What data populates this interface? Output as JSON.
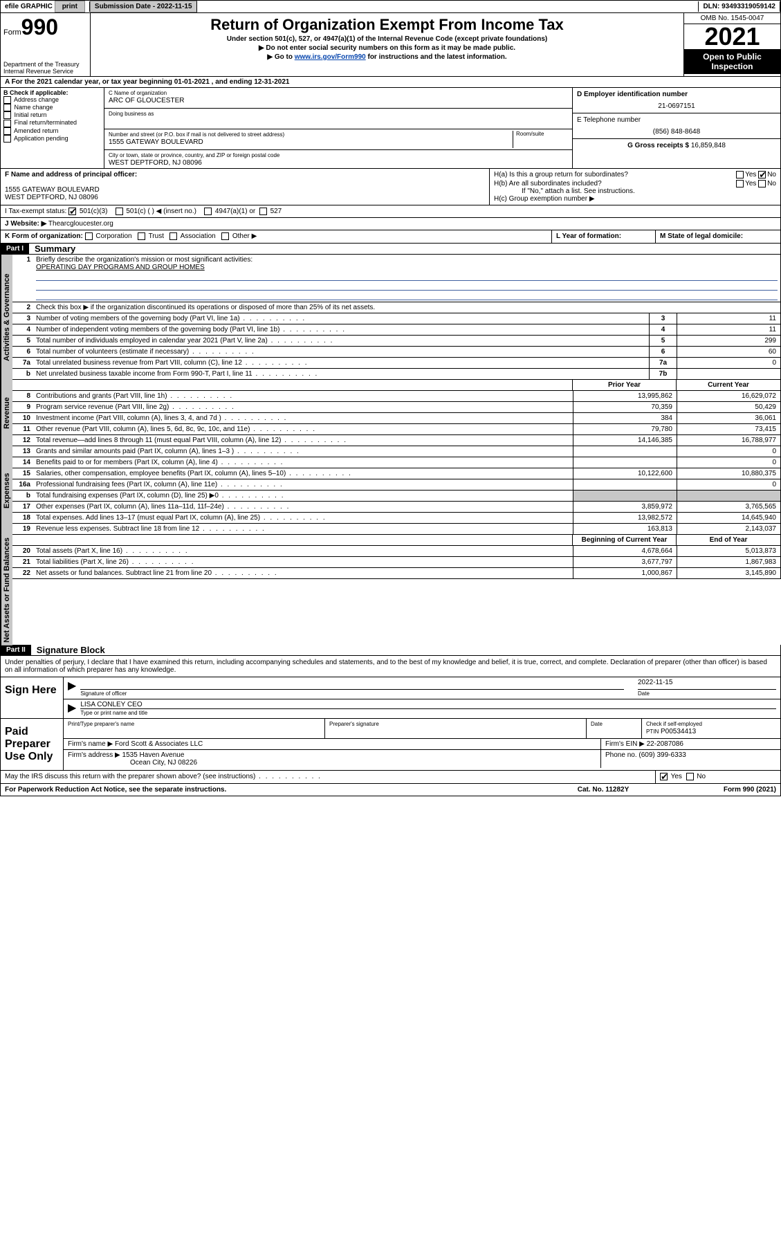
{
  "topbar": {
    "efile": "efile GRAPHIC",
    "print": "print",
    "subdate_label": "Submission Date - ",
    "subdate": "2022-11-15",
    "dln_label": "DLN: ",
    "dln": "93493319059142"
  },
  "header": {
    "form_label": "Form",
    "form_num": "990",
    "dept": "Department of the Treasury",
    "irs": "Internal Revenue Service",
    "title": "Return of Organization Exempt From Income Tax",
    "sub1": "Under section 501(c), 527, or 4947(a)(1) of the Internal Revenue Code (except private foundations)",
    "sub2": "▶ Do not enter social security numbers on this form as it may be made public.",
    "sub3_pre": "▶ Go to ",
    "sub3_link": "www.irs.gov/Form990",
    "sub3_post": " for instructions and the latest information.",
    "omb": "OMB No. 1545-0047",
    "year": "2021",
    "open": "Open to Public Inspection"
  },
  "sectionA": {
    "text": "A For the 2021 calendar year, or tax year beginning 01-01-2021    , and ending 12-31-2021"
  },
  "boxB": {
    "label": "B Check if applicable:",
    "items": [
      "Address change",
      "Name change",
      "Initial return",
      "Final return/terminated",
      "Amended return",
      "Application pending"
    ]
  },
  "boxC": {
    "name_label": "C Name of organization",
    "name": "ARC OF GLOUCESTER",
    "dba_label": "Doing business as",
    "addr_label": "Number and street (or P.O. box if mail is not delivered to street address)",
    "room_label": "Room/suite",
    "addr": "1555 GATEWAY BOULEVARD",
    "city_label": "City or town, state or province, country, and ZIP or foreign postal code",
    "city": "WEST DEPTFORD, NJ  08096"
  },
  "boxD": {
    "label": "D Employer identification number",
    "ein": "21-0697151"
  },
  "boxE": {
    "label": "E Telephone number",
    "phone": "(856) 848-8648"
  },
  "boxG": {
    "label": "G Gross receipts $ ",
    "val": "16,859,848"
  },
  "boxF": {
    "label": "F Name and address of principal officer:",
    "addr1": "1555 GATEWAY BOULEVARD",
    "addr2": "WEST DEPTFORD, NJ  08096"
  },
  "boxH": {
    "a": "H(a)  Is this a group return for subordinates?",
    "b": "H(b)  Are all subordinates included?",
    "b_note": "If \"No,\" attach a list. See instructions.",
    "c": "H(c)  Group exemption number ▶",
    "yes": "Yes",
    "no": "No"
  },
  "boxI": {
    "label": "I   Tax-exempt status:",
    "o1": "501(c)(3)",
    "o2": "501(c) (  ) ◀ (insert no.)",
    "o3": "4947(a)(1) or",
    "o4": "527"
  },
  "boxJ": {
    "label": "J   Website: ▶",
    "val": " Thearcgloucester.org"
  },
  "boxK": {
    "label": "K Form of organization:",
    "o1": "Corporation",
    "o2": "Trust",
    "o3": "Association",
    "o4": "Other ▶"
  },
  "boxL": {
    "label": "L Year of formation:"
  },
  "boxM": {
    "label": "M State of legal domicile:"
  },
  "part1": {
    "tag": "Part I",
    "title": "Summary"
  },
  "summary": {
    "q1": "Briefly describe the organization's mission or most significant activities:",
    "q1_ans": "OPERATING DAY PROGRAMS AND GROUP HOMES",
    "q2": "Check this box ▶       if the organization discontinued its operations or disposed of more than 25% of its net assets.",
    "rows_single": [
      {
        "n": "3",
        "t": "Number of voting members of the governing body (Part VI, line 1a)",
        "box": "3",
        "v": "11"
      },
      {
        "n": "4",
        "t": "Number of independent voting members of the governing body (Part VI, line 1b)",
        "box": "4",
        "v": "11"
      },
      {
        "n": "5",
        "t": "Total number of individuals employed in calendar year 2021 (Part V, line 2a)",
        "box": "5",
        "v": "299"
      },
      {
        "n": "6",
        "t": "Total number of volunteers (estimate if necessary)",
        "box": "6",
        "v": "60"
      },
      {
        "n": "7a",
        "t": "Total unrelated business revenue from Part VIII, column (C), line 12",
        "box": "7a",
        "v": "0"
      },
      {
        "n": "b",
        "t": "Net unrelated business taxable income from Form 990-T, Part I, line 11",
        "box": "7b",
        "v": ""
      }
    ],
    "col_head1": "Prior Year",
    "col_head2": "Current Year",
    "revenue": [
      {
        "n": "8",
        "t": "Contributions and grants (Part VIII, line 1h)",
        "v1": "13,995,862",
        "v2": "16,629,072"
      },
      {
        "n": "9",
        "t": "Program service revenue (Part VIII, line 2g)",
        "v1": "70,359",
        "v2": "50,429"
      },
      {
        "n": "10",
        "t": "Investment income (Part VIII, column (A), lines 3, 4, and 7d )",
        "v1": "384",
        "v2": "36,061"
      },
      {
        "n": "11",
        "t": "Other revenue (Part VIII, column (A), lines 5, 6d, 8c, 9c, 10c, and 11e)",
        "v1": "79,780",
        "v2": "73,415"
      },
      {
        "n": "12",
        "t": "Total revenue—add lines 8 through 11 (must equal Part VIII, column (A), line 12)",
        "v1": "14,146,385",
        "v2": "16,788,977"
      }
    ],
    "expenses": [
      {
        "n": "13",
        "t": "Grants and similar amounts paid (Part IX, column (A), lines 1–3 )",
        "v1": "",
        "v2": "0"
      },
      {
        "n": "14",
        "t": "Benefits paid to or for members (Part IX, column (A), line 4)",
        "v1": "",
        "v2": "0"
      },
      {
        "n": "15",
        "t": "Salaries, other compensation, employee benefits (Part IX, column (A), lines 5–10)",
        "v1": "10,122,600",
        "v2": "10,880,375"
      },
      {
        "n": "16a",
        "t": "Professional fundraising fees (Part IX, column (A), line 11e)",
        "v1": "",
        "v2": "0"
      },
      {
        "n": "b",
        "t": "Total fundraising expenses (Part IX, column (D), line 25) ▶0",
        "v1": "GRAY",
        "v2": "GRAY"
      },
      {
        "n": "17",
        "t": "Other expenses (Part IX, column (A), lines 11a–11d, 11f–24e)",
        "v1": "3,859,972",
        "v2": "3,765,565"
      },
      {
        "n": "18",
        "t": "Total expenses. Add lines 13–17 (must equal Part IX, column (A), line 25)",
        "v1": "13,982,572",
        "v2": "14,645,940"
      },
      {
        "n": "19",
        "t": "Revenue less expenses. Subtract line 18 from line 12",
        "v1": "163,813",
        "v2": "2,143,037"
      }
    ],
    "na_head1": "Beginning of Current Year",
    "na_head2": "End of Year",
    "netassets": [
      {
        "n": "20",
        "t": "Total assets (Part X, line 16)",
        "v1": "4,678,664",
        "v2": "5,013,873"
      },
      {
        "n": "21",
        "t": "Total liabilities (Part X, line 26)",
        "v1": "3,677,797",
        "v2": "1,867,983"
      },
      {
        "n": "22",
        "t": "Net assets or fund balances. Subtract line 21 from line 20",
        "v1": "1,000,867",
        "v2": "3,145,890"
      }
    ]
  },
  "vlabels": {
    "gov": "Activities & Governance",
    "rev": "Revenue",
    "exp": "Expenses",
    "na": "Net Assets or Fund Balances"
  },
  "part2": {
    "tag": "Part II",
    "title": "Signature Block"
  },
  "sig": {
    "decl": "Under penalties of perjury, I declare that I have examined this return, including accompanying schedules and statements, and to the best of my knowledge and belief, it is true, correct, and complete. Declaration of preparer (other than officer) is based on all information of which preparer has any knowledge.",
    "sign_here": "Sign Here",
    "sig_officer": "Signature of officer",
    "date_label": "Date",
    "sig_date": "2022-11-15",
    "name_title": "LISA CONLEY CEO",
    "name_label": "Type or print name and title",
    "paid": "Paid Preparer Use Only",
    "prep_name_label": "Print/Type preparer's name",
    "prep_sig_label": "Preparer's signature",
    "check_self": "Check        if self-employed",
    "ptin_label": "PTIN",
    "ptin": "P00534413",
    "firm_name_label": "Firm's name    ▶ ",
    "firm_name": "Ford Scott & Associates LLC",
    "firm_ein_label": "Firm's EIN ▶ ",
    "firm_ein": "22-2087086",
    "firm_addr_label": "Firm's address ▶ ",
    "firm_addr1": "1535 Haven Avenue",
    "firm_addr2": "Ocean City, NJ  08226",
    "phone_label": "Phone no. ",
    "phone": "(609) 399-6333",
    "may_irs": "May the IRS discuss this return with the preparer shown above? (see instructions)"
  },
  "footer": {
    "paperwork": "For Paperwork Reduction Act Notice, see the separate instructions.",
    "cat": "Cat. No. 11282Y",
    "form": "Form 990 (2021)"
  }
}
